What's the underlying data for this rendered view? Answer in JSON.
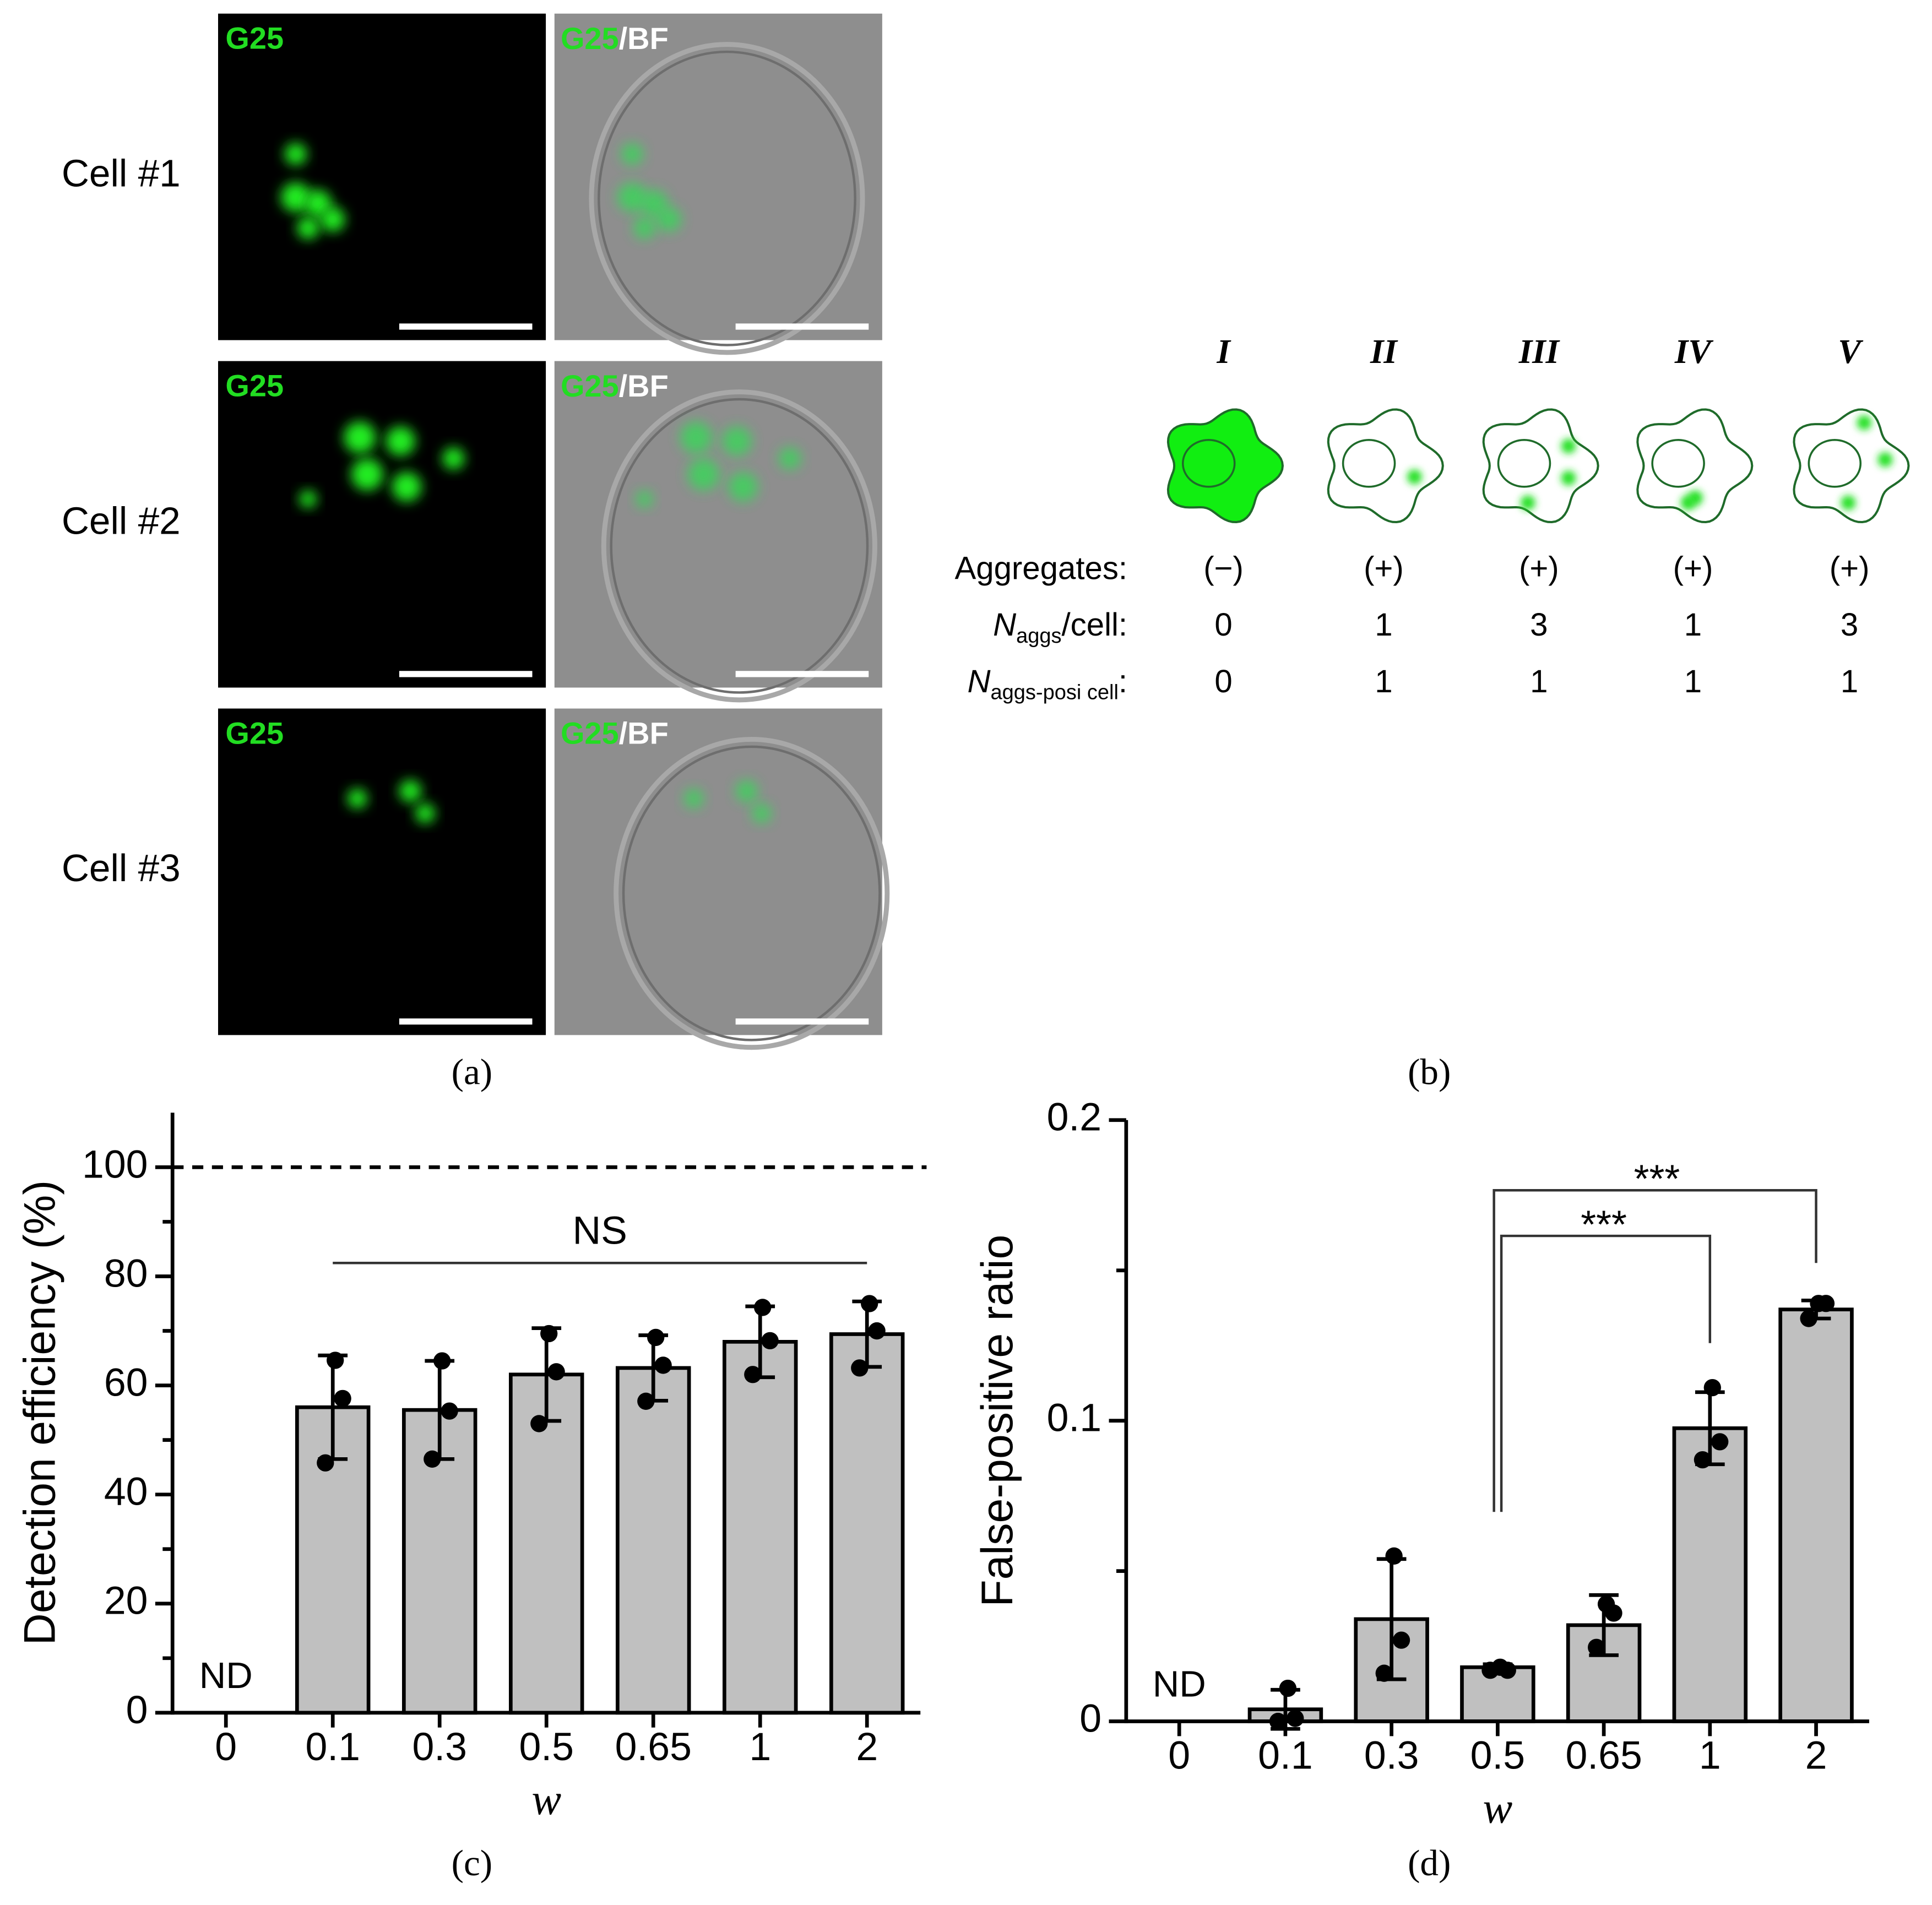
{
  "panel_a": {
    "label": "(a)",
    "rows": [
      {
        "label": "Cell #1",
        "left_channel": "G25",
        "right_channel": "G25",
        "right_overlay": "/BF"
      },
      {
        "label": "Cell #2",
        "left_channel": "G25",
        "right_channel": "G25",
        "right_overlay": "/BF"
      },
      {
        "label": "Cell #3",
        "left_channel": "G25",
        "right_channel": "G25",
        "right_overlay": "/BF"
      }
    ]
  },
  "panel_b": {
    "label": "(b)",
    "classes": [
      "I",
      "II",
      "III",
      "IV",
      "V"
    ],
    "rows": [
      {
        "label": "Aggregates:",
        "values": [
          "(−)",
          "(+)",
          "(+)",
          "(+)",
          "(+)"
        ]
      },
      {
        "label_main": "N",
        "label_sub": "aggs",
        "label_rest": "/cell:",
        "values": [
          "0",
          "1",
          "3",
          "1",
          "3"
        ]
      },
      {
        "label_main": "N",
        "label_sub": "aggs-posi cell",
        "label_rest": ":",
        "values": [
          "0",
          "1",
          "1",
          "1",
          "1"
        ]
      }
    ]
  },
  "chart_data": [
    {
      "type": "bar",
      "panel_label": "(c)",
      "xlabel": "w",
      "ylabel": "Detection efficiency (%)",
      "categories": [
        "0",
        "0.1",
        "0.3",
        "0.5",
        "0.65",
        "1",
        "2"
      ],
      "values": [
        null,
        56,
        55.5,
        62,
        63.2,
        68,
        69.4
      ],
      "errors": [
        null,
        9.5,
        9,
        8.5,
        6,
        6.5,
        6
      ],
      "points": [
        null,
        [
          64.6,
          57.6,
          45.8
        ],
        [
          64.5,
          55.3,
          46.5
        ],
        [
          69.5,
          62.5,
          53
        ],
        [
          68.8,
          63.7,
          57.1
        ],
        [
          74.3,
          68.2,
          62
        ],
        [
          75,
          70,
          63.2
        ]
      ],
      "color": "#c0c0c0",
      "ylim": [
        0,
        110
      ],
      "yticks": [
        0,
        20,
        40,
        60,
        80,
        100
      ],
      "minor_yticks": [
        10,
        30,
        50,
        70,
        90
      ],
      "reference_line": 100,
      "annotations": [
        "ND",
        "NS"
      ]
    },
    {
      "type": "bar",
      "panel_label": "(d)",
      "xlabel": "w",
      "ylabel": "False-positive ratio",
      "categories": [
        "0",
        "0.1",
        "0.3",
        "0.5",
        "0.65",
        "1",
        "2"
      ],
      "values": [
        null,
        0.004,
        0.034,
        0.018,
        0.032,
        0.0975,
        0.137
      ],
      "errors": [
        null,
        0.0065,
        0.02,
        0.001,
        0.01,
        0.012,
        0.003
      ],
      "points": [
        null,
        [
          0.011,
          0.001,
          0
        ],
        [
          0.055,
          0.027,
          0.016
        ],
        [
          0.018,
          0.017,
          0.017
        ],
        [
          0.039,
          0.036,
          0.0246
        ],
        [
          0.111,
          0.093,
          0.087
        ],
        [
          0.139,
          0.139,
          0.134
        ]
      ],
      "color": "#c0c0c0",
      "ylim": [
        0,
        0.2
      ],
      "yticks": [
        0,
        0.1,
        0.2
      ],
      "minor_yticks": [
        0.05,
        0.15
      ],
      "annotations": [
        "ND",
        "***",
        "***"
      ]
    }
  ]
}
